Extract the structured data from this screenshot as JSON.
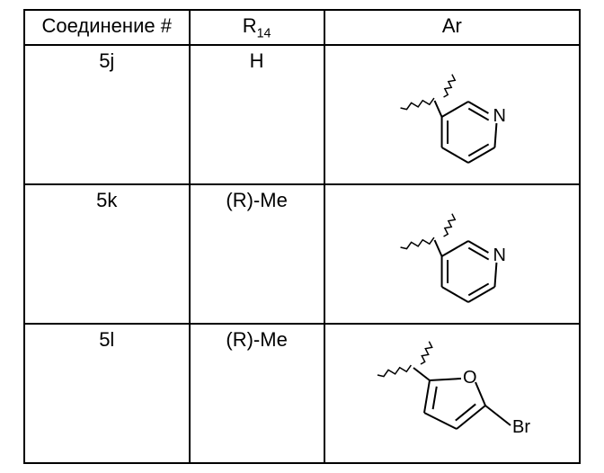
{
  "header": {
    "compound": "Соединение #",
    "r14_label_pre": "R",
    "r14_label_sub": "14",
    "ar": "Ar"
  },
  "rows": [
    {
      "compound": "5j",
      "r14": "H",
      "structure": "pyridine"
    },
    {
      "compound": "5k",
      "r14": "(R)-Me",
      "structure": "pyridine"
    },
    {
      "compound": "5l",
      "r14": "(R)-Me",
      "structure": "bromofuran"
    }
  ],
  "style": {
    "line_color": "#000000",
    "line_width": 2,
    "wavy_width": 1.5,
    "font_label": "20px Arial"
  }
}
